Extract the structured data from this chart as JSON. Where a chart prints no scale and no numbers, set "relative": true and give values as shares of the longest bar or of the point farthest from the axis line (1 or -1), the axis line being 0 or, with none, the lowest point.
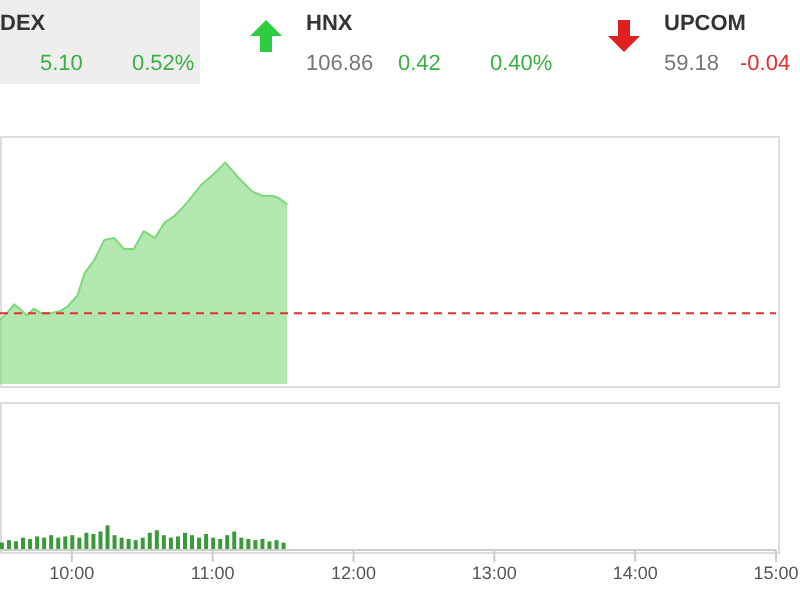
{
  "chart_data": [
    {
      "type": "area",
      "relative": true,
      "tick_labels": false,
      "xlim": [
        9.49,
        15
      ],
      "annotations": [
        "DEX",
        "5.10",
        "0.52%",
        "HNX",
        "106.86",
        "0.42",
        "0.40%",
        "UPCOM",
        "59.18",
        "-0.04"
      ],
      "x": [
        9.49,
        9.54,
        9.59,
        9.63,
        9.68,
        9.73,
        9.78,
        9.85,
        9.92,
        9.97,
        10.04,
        10.09,
        10.16,
        10.23,
        10.3,
        10.37,
        10.44,
        10.51,
        10.59,
        10.66,
        10.73,
        10.82,
        10.92,
        11.01,
        11.09,
        11.13,
        11.2,
        11.28,
        11.35,
        11.42,
        11.47,
        11.53
      ],
      "series": [
        {
          "color": "#7ed87a",
          "values": [
            0.29,
            0.32,
            0.36,
            0.34,
            0.31,
            0.34,
            0.32,
            0.32,
            0.33,
            0.35,
            0.4,
            0.5,
            0.56,
            0.65,
            0.66,
            0.61,
            0.61,
            0.69,
            0.66,
            0.73,
            0.76,
            0.82,
            0.9,
            0.95,
            1.0,
            0.97,
            0.92,
            0.87,
            0.85,
            0.85,
            0.84,
            0.81
          ]
        }
      ],
      "ref_lines": [
        {
          "axis": "y",
          "value": 0.32,
          "color": "#e03030",
          "line_style": "dashed"
        }
      ]
    },
    {
      "type": "bar",
      "relative": true,
      "tick_labels": "x",
      "xlim": [
        9.49,
        15
      ],
      "xticks": [
        {
          "value": 10,
          "label": "10:00"
        },
        {
          "value": 11,
          "label": "11:00"
        },
        {
          "value": 12,
          "label": "12:00"
        },
        {
          "value": 13,
          "label": "13:00"
        },
        {
          "value": 14,
          "label": "14:00"
        },
        {
          "value": 15,
          "label": "15:00"
        }
      ],
      "x": [
        9.5,
        9.55,
        9.6,
        9.65,
        9.7,
        9.75,
        9.8,
        9.85,
        9.9,
        9.95,
        10.0,
        10.05,
        10.1,
        10.15,
        10.2,
        10.25,
        10.3,
        10.35,
        10.4,
        10.45,
        10.5,
        10.55,
        10.6,
        10.65,
        10.7,
        10.75,
        10.8,
        10.85,
        10.9,
        10.95,
        11.0,
        11.05,
        11.1,
        11.15,
        11.2,
        11.25,
        11.3,
        11.35,
        11.4,
        11.45,
        11.5
      ],
      "series": [
        {
          "color": "#3a9a3a",
          "values": [
            0.3,
            0.4,
            0.35,
            0.5,
            0.45,
            0.55,
            0.5,
            0.6,
            0.5,
            0.55,
            0.6,
            0.5,
            0.7,
            0.65,
            0.75,
            1.0,
            0.6,
            0.5,
            0.45,
            0.4,
            0.5,
            0.7,
            0.8,
            0.6,
            0.5,
            0.55,
            0.7,
            0.6,
            0.5,
            0.65,
            0.5,
            0.45,
            0.6,
            0.75,
            0.5,
            0.45,
            0.4,
            0.45,
            0.35,
            0.4,
            0.3
          ]
        }
      ]
    }
  ]
}
